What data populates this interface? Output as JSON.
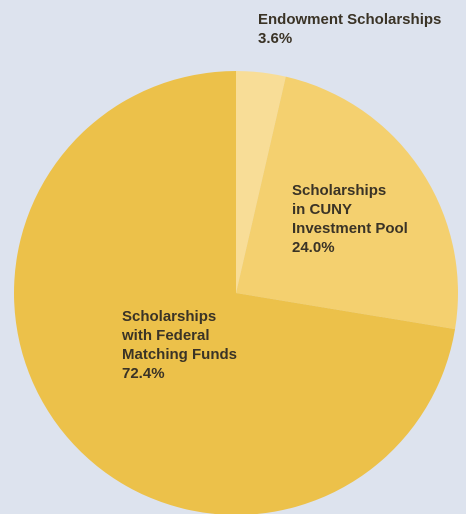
{
  "chart_data": {
    "type": "pie",
    "categories": [
      "Endowment Scholarships",
      "Scholarships\nin CUNY\nInvestment Pool",
      "Scholarships\nwith Federal\nMatching Funds"
    ],
    "values": [
      3.6,
      24.0,
      72.4
    ],
    "value_labels": [
      "3.6%",
      "24.0%",
      "72.4%"
    ],
    "colors": [
      "#f8dd97",
      "#f4d06f",
      "#ecc14a"
    ]
  }
}
